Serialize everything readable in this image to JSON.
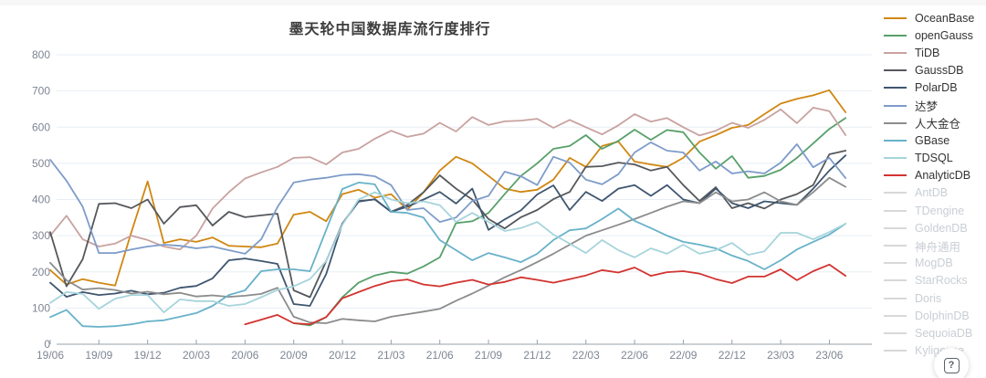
{
  "title": "墨天轮中国数据库流行度排行",
  "help_button": {
    "glyph": "?"
  },
  "chart_data": {
    "type": "line",
    "title": "墨天轮中国数据库流行度排行",
    "ylim": [
      0,
      800
    ],
    "y_ticks": [
      0,
      100,
      200,
      300,
      400,
      500,
      600,
      700,
      800
    ],
    "grid": true,
    "legend_position": "right",
    "style": {
      "grid_color": "#e7edf4",
      "axis_color": "#9aa1aa",
      "tick_label_color": "#7d8694",
      "inactive_line_color": "#d8d8d8",
      "title_color": "#3d3d3d"
    },
    "x": [
      "19/06",
      "19/07",
      "19/08",
      "19/09",
      "19/10",
      "19/11",
      "19/12",
      "20/01",
      "20/02",
      "20/03",
      "20/04",
      "20/05",
      "20/06",
      "20/07",
      "20/08",
      "20/09",
      "20/10",
      "20/11",
      "20/12",
      "21/01",
      "21/02",
      "21/03",
      "21/04",
      "21/05",
      "21/06",
      "21/07",
      "21/08",
      "21/09",
      "21/10",
      "21/11",
      "21/12",
      "22/01",
      "22/02",
      "22/03",
      "22/04",
      "22/05",
      "22/06",
      "22/07",
      "22/08",
      "22/09",
      "22/10",
      "22/11",
      "22/12",
      "23/01",
      "23/02",
      "23/03",
      "23/04",
      "23/05",
      "23/06",
      "23/07"
    ],
    "x_tick_every": 3,
    "series": [
      {
        "name": "OceanBase",
        "color": "#d08712",
        "active": true,
        "values": [
          205,
          165,
          180,
          170,
          162,
          310,
          450,
          280,
          290,
          283,
          295,
          272,
          270,
          268,
          278,
          358,
          366,
          340,
          415,
          427,
          405,
          415,
          372,
          420,
          480,
          518,
          500,
          465,
          430,
          421,
          427,
          455,
          515,
          490,
          548,
          560,
          505,
          497,
          490,
          515,
          560,
          578,
          598,
          606,
          636,
          665,
          678,
          688,
          702,
          641
        ]
      },
      {
        "name": "openGauss",
        "color": "#57a06a",
        "active": true,
        "values": [
          null,
          null,
          null,
          null,
          null,
          null,
          null,
          null,
          null,
          null,
          null,
          null,
          null,
          null,
          null,
          58,
          52,
          75,
          130,
          170,
          190,
          200,
          195,
          215,
          240,
          335,
          340,
          363,
          415,
          465,
          500,
          540,
          548,
          578,
          540,
          562,
          593,
          565,
          592,
          586,
          530,
          485,
          520,
          460,
          465,
          482,
          515,
          555,
          595,
          625
        ]
      },
      {
        "name": "TiDB",
        "color": "#c8a2a0",
        "active": true,
        "values": [
          300,
          355,
          290,
          270,
          278,
          300,
          288,
          270,
          262,
          300,
          375,
          420,
          458,
          475,
          490,
          515,
          517,
          497,
          530,
          540,
          568,
          590,
          573,
          582,
          612,
          588,
          628,
          606,
          616,
          618,
          623,
          598,
          620,
          600,
          580,
          605,
          636,
          615,
          625,
          600,
          577,
          590,
          612,
          598,
          620,
          649,
          611,
          654,
          644,
          578
        ]
      },
      {
        "name": "GaussDB",
        "color": "#55585c",
        "active": true,
        "values": [
          310,
          160,
          235,
          388,
          390,
          376,
          400,
          333,
          379,
          384,
          328,
          366,
          351,
          356,
          361,
          149,
          130,
          230,
          333,
          396,
          400,
          366,
          385,
          420,
          467,
          430,
          400,
          346,
          320,
          351,
          371,
          401,
          421,
          490,
          492,
          502,
          497,
          480,
          490,
          440,
          396,
          434,
          376,
          390,
          375,
          400,
          415,
          440,
          525,
          535
        ]
      },
      {
        "name": "PolarDB",
        "color": "#3f5670",
        "active": true,
        "values": [
          170,
          131,
          144,
          136,
          140,
          148,
          138,
          142,
          156,
          161,
          182,
          232,
          237,
          230,
          222,
          111,
          106,
          194,
          333,
          394,
          401,
          366,
          380,
          400,
          421,
          389,
          430,
          316,
          345,
          370,
          414,
          439,
          371,
          421,
          396,
          430,
          440,
          410,
          440,
          400,
          390,
          430,
          390,
          376,
          395,
          390,
          385,
          430,
          480,
          522
        ]
      },
      {
        "name": "达梦",
        "color": "#7e9cc9",
        "active": true,
        "values": [
          510,
          452,
          380,
          252,
          252,
          262,
          270,
          275,
          272,
          265,
          270,
          260,
          250,
          290,
          379,
          447,
          455,
          460,
          468,
          470,
          464,
          440,
          371,
          376,
          338,
          350,
          396,
          410,
          477,
          464,
          440,
          518,
          502,
          455,
          442,
          470,
          530,
          558,
          535,
          530,
          480,
          505,
          472,
          478,
          472,
          502,
          553,
          489,
          515,
          459
        ]
      },
      {
        "name": "人大金仓",
        "color": "#8c8c8c",
        "active": true,
        "values": [
          225,
          177,
          151,
          155,
          150,
          140,
          145,
          138,
          142,
          132,
          135,
          131,
          134,
          139,
          156,
          76,
          60,
          58,
          70,
          66,
          63,
          76,
          83,
          90,
          98,
          120,
          140,
          162,
          185,
          205,
          227,
          250,
          275,
          300,
          315,
          330,
          346,
          363,
          380,
          395,
          390,
          420,
          395,
          400,
          420,
          395,
          385,
          420,
          460,
          435
        ]
      },
      {
        "name": "GBase",
        "color": "#68b2c9",
        "active": true,
        "values": [
          75,
          95,
          50,
          48,
          50,
          55,
          63,
          66,
          76,
          86,
          106,
          136,
          149,
          202,
          207,
          207,
          202,
          316,
          429,
          447,
          442,
          366,
          363,
          350,
          288,
          260,
          232,
          252,
          240,
          227,
          250,
          288,
          315,
          320,
          346,
          375,
          341,
          321,
          300,
          283,
          275,
          265,
          245,
          230,
          207,
          232,
          262,
          283,
          303,
          333
        ]
      },
      {
        "name": "TDSQL",
        "color": "#a6d4dc",
        "active": true,
        "values": [
          114,
          144,
          139,
          98,
          126,
          136,
          136,
          88,
          124,
          119,
          119,
          106,
          111,
          130,
          150,
          160,
          180,
          230,
          330,
          400,
          420,
          400,
          390,
          395,
          384,
          338,
          363,
          338,
          313,
          321,
          338,
          303,
          278,
          252,
          288,
          260,
          240,
          265,
          250,
          275,
          250,
          260,
          280,
          247,
          257,
          308,
          308,
          290,
          310,
          333
        ]
      },
      {
        "name": "AnalyticDB",
        "color": "#d23430",
        "active": true,
        "values": [
          null,
          null,
          null,
          null,
          null,
          null,
          null,
          null,
          null,
          null,
          null,
          null,
          55,
          68,
          81,
          58,
          55,
          75,
          127,
          144,
          161,
          174,
          179,
          165,
          160,
          170,
          178,
          165,
          172,
          185,
          178,
          170,
          180,
          190,
          205,
          198,
          212,
          189,
          199,
          202,
          195,
          180,
          169,
          187,
          187,
          207,
          177,
          202,
          220,
          189
        ]
      },
      {
        "name": "AntDB",
        "color": null,
        "active": false,
        "values": []
      },
      {
        "name": "TDengine",
        "color": null,
        "active": false,
        "values": []
      },
      {
        "name": "GoldenDB",
        "color": null,
        "active": false,
        "values": []
      },
      {
        "name": "神舟通用",
        "color": null,
        "active": false,
        "values": []
      },
      {
        "name": "MogDB",
        "color": null,
        "active": false,
        "values": []
      },
      {
        "name": "StarRocks",
        "color": null,
        "active": false,
        "values": []
      },
      {
        "name": "Doris",
        "color": null,
        "active": false,
        "values": []
      },
      {
        "name": "DolphinDB",
        "color": null,
        "active": false,
        "values": []
      },
      {
        "name": "SequoiaDB",
        "color": null,
        "active": false,
        "values": []
      },
      {
        "name": "Kyligence",
        "color": null,
        "active": false,
        "values": []
      }
    ]
  }
}
